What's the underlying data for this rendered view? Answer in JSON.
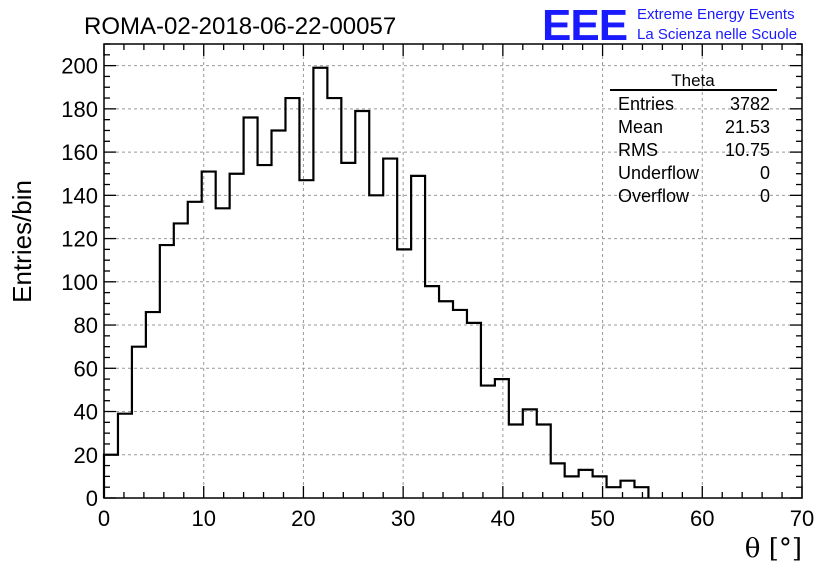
{
  "header": {
    "run_title": "ROMA-02-2018-06-22-00057",
    "logo_text": "EEE",
    "logo_line1": "Extreme Energy Events",
    "logo_line2": "La Scienza nelle Scuole"
  },
  "colors": {
    "logo": "#1a1aff",
    "histogram": "#000000",
    "grid": "#999999"
  },
  "stats_box": {
    "title": "Theta",
    "rows": [
      {
        "label": "Entries",
        "value": "3782"
      },
      {
        "label": "Mean",
        "value": "21.53"
      },
      {
        "label": "RMS",
        "value": "10.75"
      },
      {
        "label": "Underflow",
        "value": "0"
      },
      {
        "label": "Overflow",
        "value": "0"
      }
    ]
  },
  "chart_data": {
    "type": "bar",
    "style": "step-histogram",
    "xlabel": "θ [°]",
    "ylabel": "Entries/bin",
    "xlim": [
      0,
      70
    ],
    "ylim": [
      0,
      210
    ],
    "grid": true,
    "x_ticks": [
      0,
      10,
      20,
      30,
      40,
      50,
      60,
      70
    ],
    "y_ticks": [
      0,
      20,
      40,
      60,
      80,
      100,
      120,
      140,
      160,
      180,
      200
    ],
    "bin_width": 1.4,
    "bin_edges_start": 0,
    "values": [
      20,
      39,
      70,
      86,
      117,
      127,
      137,
      151,
      134,
      150,
      176,
      154,
      170,
      185,
      147,
      199,
      185,
      155,
      179,
      140,
      157,
      115,
      149,
      98,
      91,
      87,
      81,
      52,
      55,
      34,
      41,
      34,
      16,
      10,
      13,
      10,
      5,
      8,
      5
    ]
  }
}
